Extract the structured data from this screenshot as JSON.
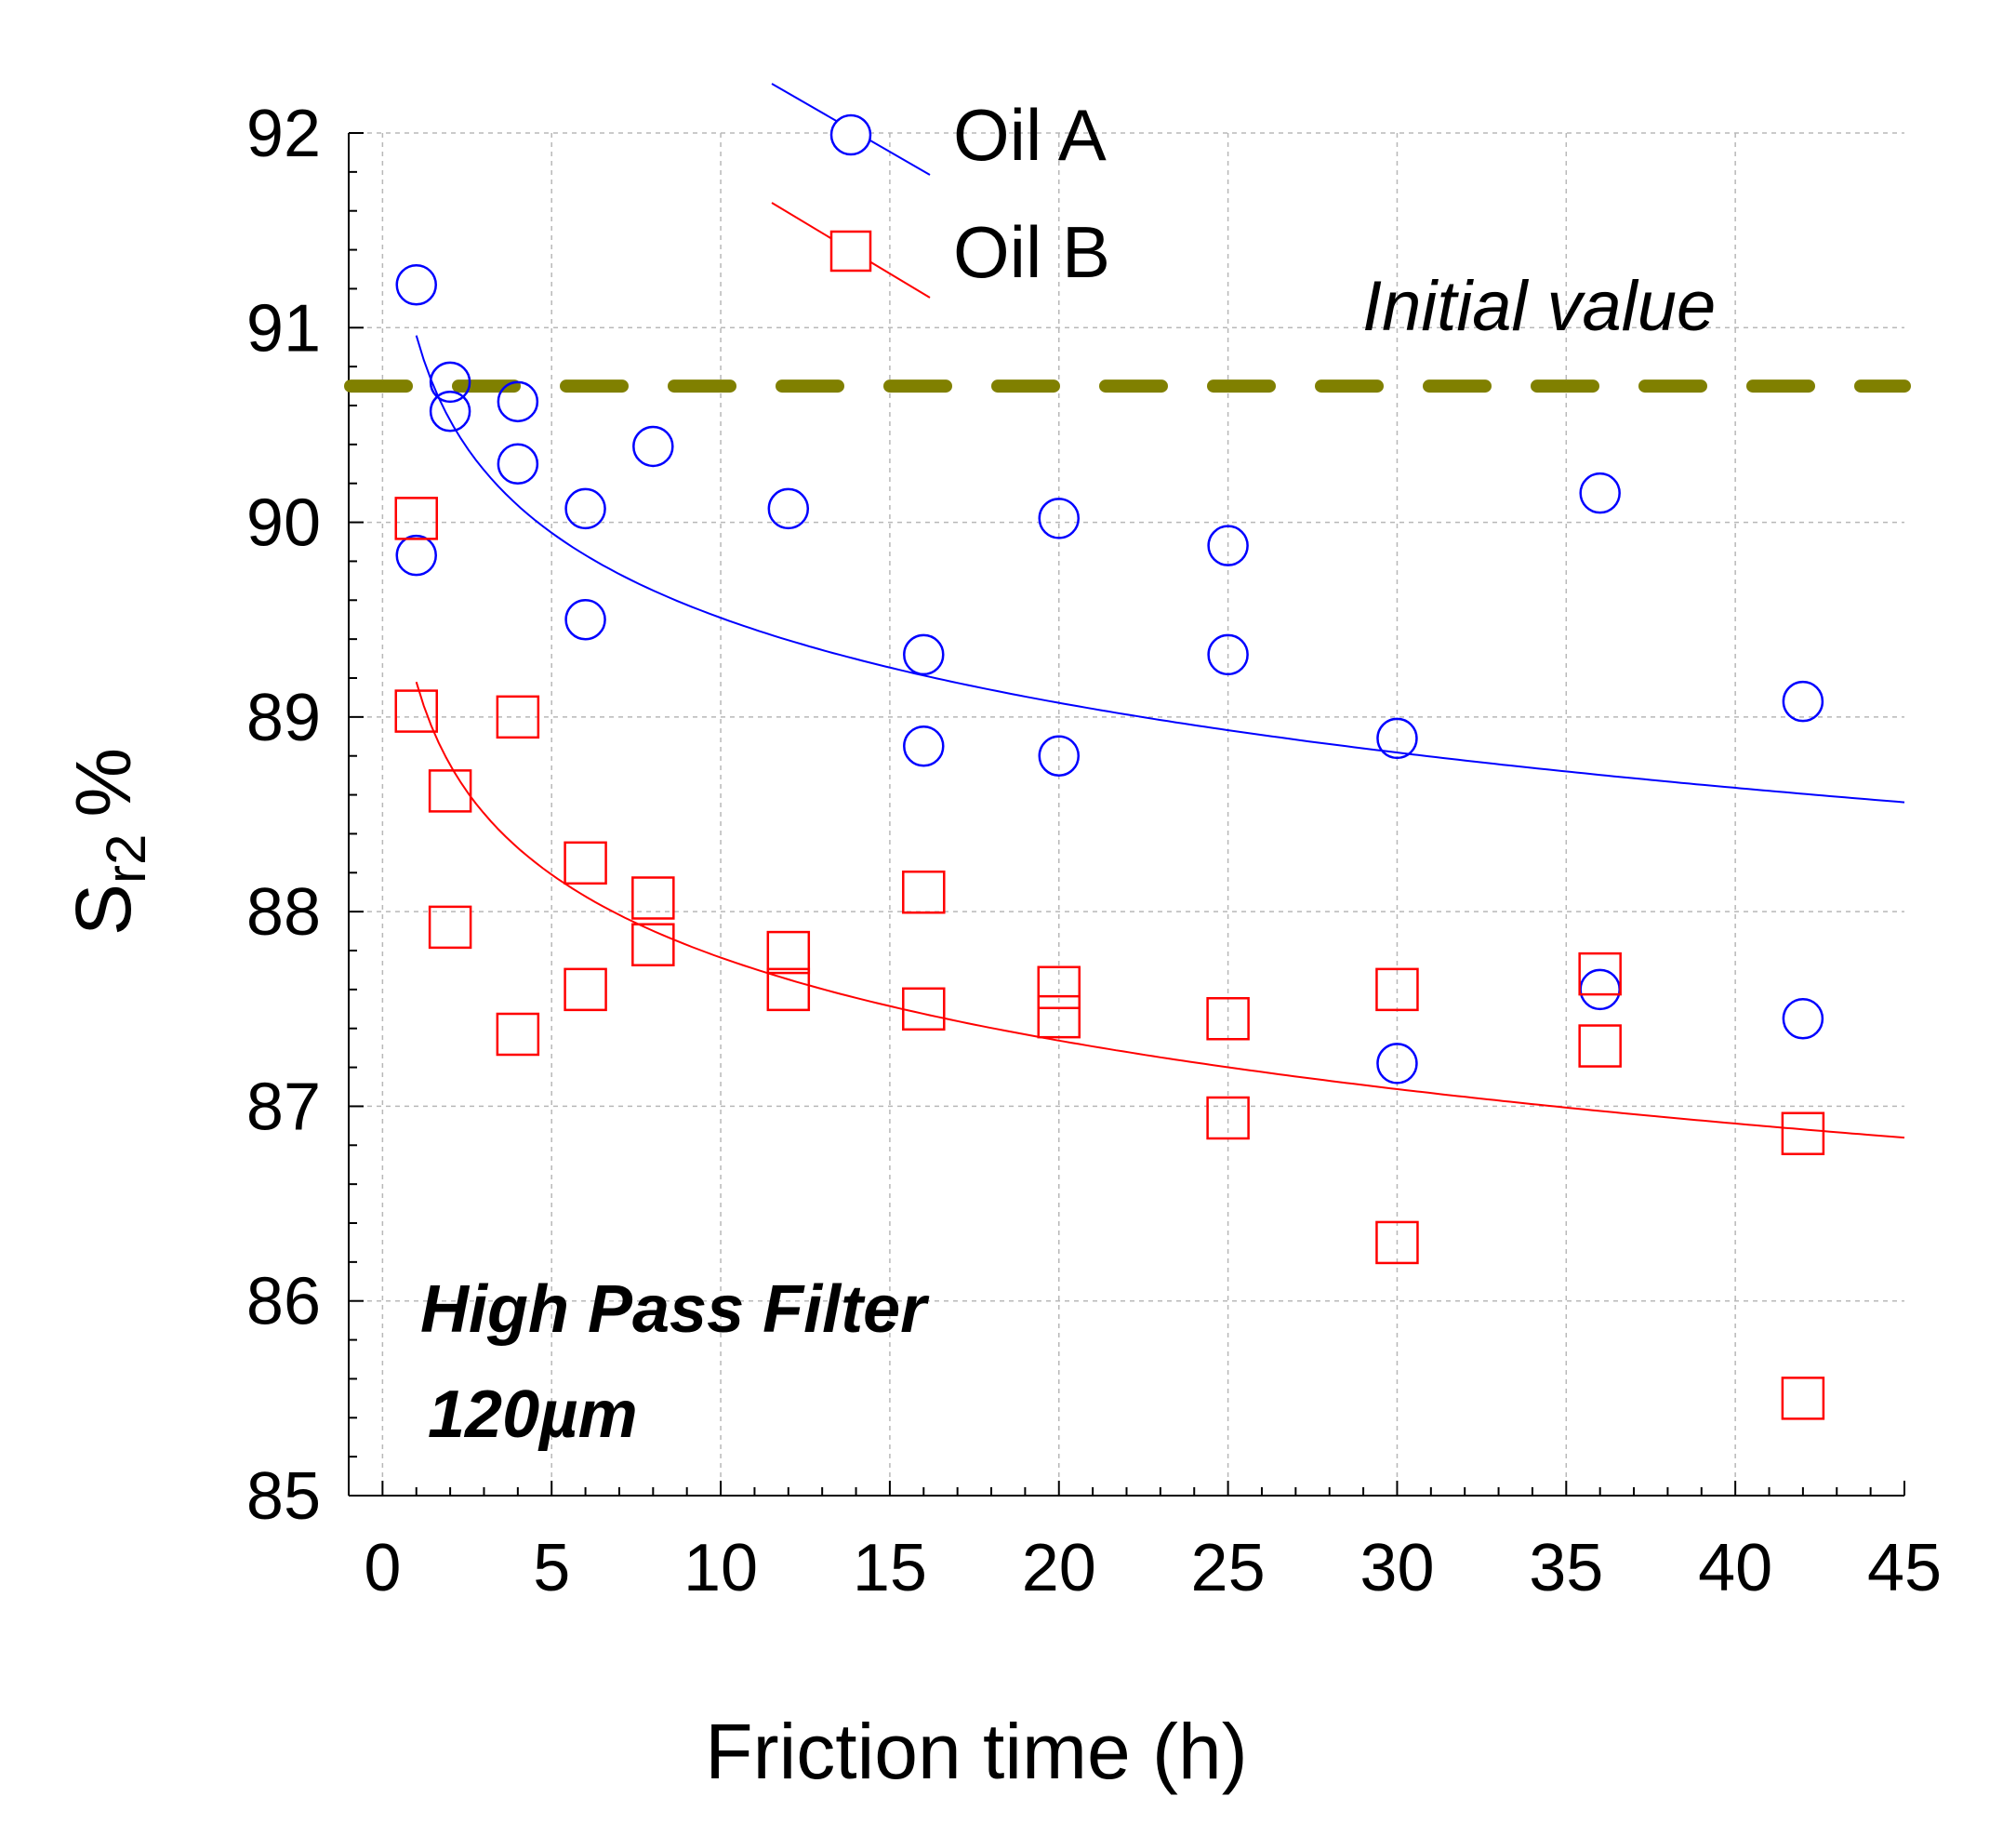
{
  "chart_data": {
    "type": "scatter",
    "title": "",
    "xlabel": "Friction time (h)",
    "ylabel_main": "S",
    "ylabel_sub": "r2",
    "ylabel_unit": "%",
    "xlim": [
      -1,
      45
    ],
    "ylim": [
      85,
      92
    ],
    "xticks": [
      0,
      5,
      10,
      15,
      20,
      25,
      30,
      35,
      40,
      45
    ],
    "yticks": [
      85,
      86,
      87,
      88,
      89,
      90,
      91,
      92
    ],
    "grid": true,
    "legend_position": "top-center",
    "series": [
      {
        "name": "Oil A",
        "marker": "circle",
        "color": "#0000ff",
        "points": [
          [
            1,
            91.22
          ],
          [
            1,
            89.83
          ],
          [
            2,
            90.72
          ],
          [
            2,
            90.57
          ],
          [
            4,
            90.62
          ],
          [
            4,
            90.3
          ],
          [
            6,
            90.07
          ],
          [
            6,
            89.5
          ],
          [
            8,
            90.39
          ],
          [
            12,
            90.07
          ],
          [
            16,
            89.32
          ],
          [
            16,
            88.85
          ],
          [
            20,
            90.02
          ],
          [
            20,
            88.8
          ],
          [
            25,
            89.88
          ],
          [
            25,
            89.32
          ],
          [
            30,
            88.89
          ],
          [
            30,
            87.22
          ],
          [
            36,
            90.15
          ],
          [
            36,
            87.6
          ],
          [
            42,
            89.08
          ],
          [
            42,
            87.45
          ]
        ],
        "fit": {
          "kind": "logarithmic",
          "a": 90.96,
          "b": -0.63,
          "x_from": 1,
          "x_to": 45
        }
      },
      {
        "name": "Oil B",
        "marker": "square",
        "color": "#ff0000",
        "points": [
          [
            1,
            90.02
          ],
          [
            1,
            89.03
          ],
          [
            2,
            88.62
          ],
          [
            2,
            87.92
          ],
          [
            4,
            89.0
          ],
          [
            4,
            87.37
          ],
          [
            6,
            88.25
          ],
          [
            6,
            87.6
          ],
          [
            8,
            88.07
          ],
          [
            8,
            87.83
          ],
          [
            12,
            87.79
          ],
          [
            12,
            87.6
          ],
          [
            16,
            88.1
          ],
          [
            16,
            87.5
          ],
          [
            20,
            87.61
          ],
          [
            20,
            87.46
          ],
          [
            25,
            87.45
          ],
          [
            25,
            86.94
          ],
          [
            30,
            87.6
          ],
          [
            30,
            86.3
          ],
          [
            36,
            87.68
          ],
          [
            36,
            87.31
          ],
          [
            42,
            86.86
          ],
          [
            42,
            85.5
          ]
        ],
        "fit": {
          "kind": "logarithmic",
          "a": 89.18,
          "b": -0.615,
          "x_from": 1,
          "x_to": 45
        }
      }
    ],
    "reference_line": {
      "label": "Initial value",
      "value": 90.7,
      "color": "#808000"
    },
    "annotations": [
      "High Pass Filter",
      "120µm"
    ]
  }
}
